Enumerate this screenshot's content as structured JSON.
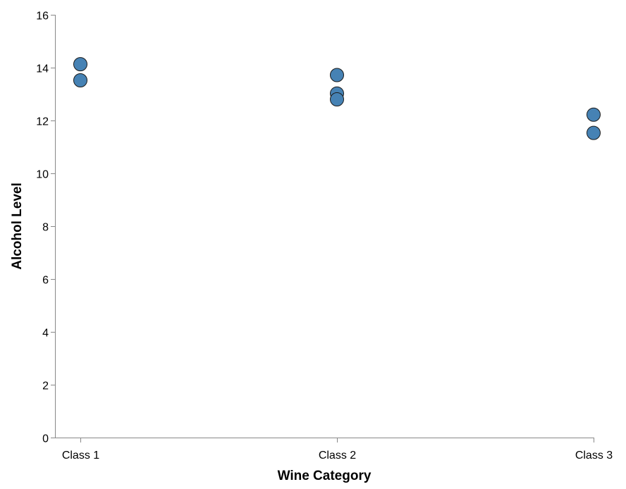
{
  "chart_data": {
    "type": "scatter",
    "xlabel": "Wine Category",
    "ylabel": "Alcohol Level",
    "categories": [
      "Class 1",
      "Class 2",
      "Class 3"
    ],
    "ylim": [
      0,
      16
    ],
    "yticks": [
      0,
      2,
      4,
      6,
      8,
      10,
      12,
      14,
      16
    ],
    "grid": false,
    "point_color": "#4682b4",
    "points": [
      {
        "x": "Class 1",
        "y": 14.13
      },
      {
        "x": "Class 1",
        "y": 13.52
      },
      {
        "x": "Class 2",
        "y": 13.72
      },
      {
        "x": "Class 2",
        "y": 13.02
      },
      {
        "x": "Class 2",
        "y": 12.8
      },
      {
        "x": "Class 3",
        "y": 12.22
      },
      {
        "x": "Class 3",
        "y": 11.53
      }
    ]
  }
}
